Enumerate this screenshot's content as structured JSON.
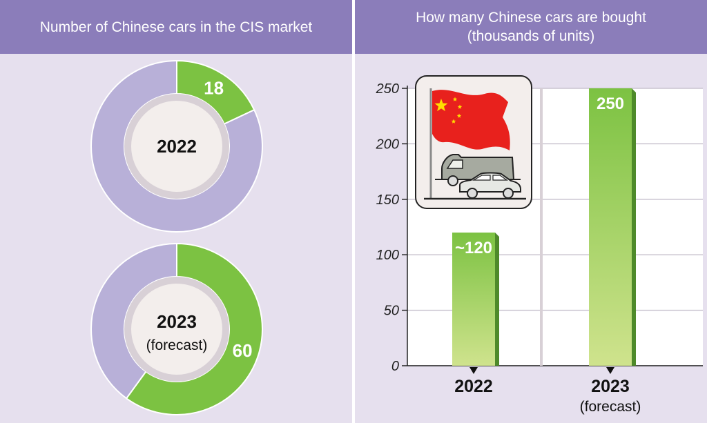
{
  "left": {
    "title": "Number of Chinese cars in the CIS market"
  },
  "right": {
    "title_line1": "How many Chinese cars are bought",
    "title_line2": "(thousands of units)"
  },
  "colors": {
    "header": "#8b7dba",
    "background": "#e6e0ee",
    "donut_rest": "#b8b0d8",
    "green": "#7cc242",
    "green_light": "#cfe38d",
    "flag_red": "#e8211d",
    "flag_star": "#ffde00"
  },
  "icons": [
    "chinese-flag-icon",
    "van-icon",
    "car-icon"
  ],
  "chart_data": [
    {
      "type": "pie",
      "style": "donut",
      "center_label": "2022",
      "center_sublabel": "",
      "slices": [
        {
          "label": "18",
          "value": 18,
          "color": "#7cc242"
        },
        {
          "label": "",
          "value": 82,
          "color": "#b8b0d8"
        }
      ]
    },
    {
      "type": "pie",
      "style": "donut",
      "center_label": "2023",
      "center_sublabel": "(forecast)",
      "slices": [
        {
          "label": "60",
          "value": 60,
          "color": "#7cc242"
        },
        {
          "label": "",
          "value": 40,
          "color": "#b8b0d8"
        }
      ]
    },
    {
      "type": "bar",
      "categories": [
        "2022",
        "2023"
      ],
      "category_sublabels": [
        "",
        "(forecast)"
      ],
      "values": [
        120,
        250
      ],
      "value_labels": [
        "~120",
        "250"
      ],
      "ylim": [
        0,
        250
      ],
      "yticks": [
        0,
        50,
        100,
        150,
        200,
        250
      ],
      "grid": true
    }
  ]
}
